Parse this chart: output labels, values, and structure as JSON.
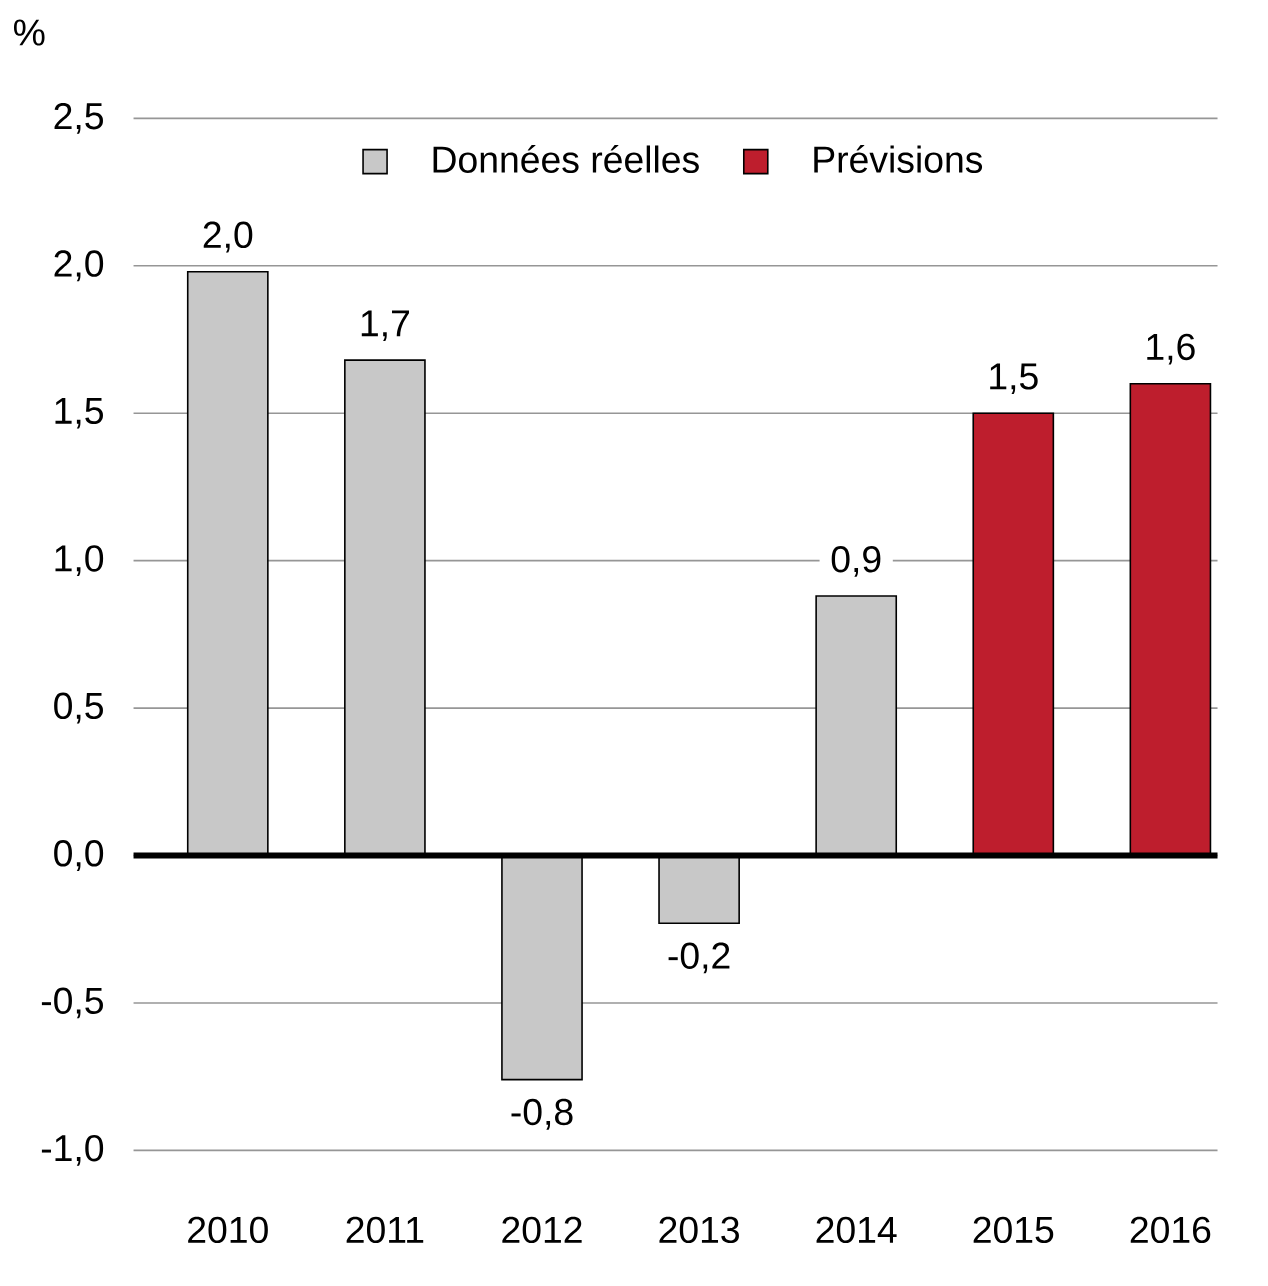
{
  "chart_data": {
    "type": "bar",
    "ylabel": "%",
    "categories": [
      "2010",
      "2011",
      "2012",
      "2013",
      "2014",
      "2015",
      "2016"
    ],
    "series": [
      {
        "name": "Données réelles",
        "color": "#c8c8c8",
        "values": [
          1.98,
          1.68,
          -0.76,
          -0.23,
          0.88,
          null,
          null
        ],
        "value_labels": [
          "2,0",
          "1,7",
          "-0,8",
          "-0,2",
          "0,9",
          null,
          null
        ]
      },
      {
        "name": "Prévisions",
        "color": "#be1e2d",
        "values": [
          null,
          null,
          null,
          null,
          null,
          1.5,
          1.6
        ],
        "value_labels": [
          null,
          null,
          null,
          null,
          null,
          "1,5",
          "1,6"
        ]
      }
    ],
    "ylim": [
      -1.0,
      2.5
    ],
    "yticks": [
      {
        "value": -1.0,
        "label": "-1,0"
      },
      {
        "value": -0.5,
        "label": "-0,5"
      },
      {
        "value": 0.0,
        "label": "0,0"
      },
      {
        "value": 0.5,
        "label": "0,5"
      },
      {
        "value": 1.0,
        "label": "1,0"
      },
      {
        "value": 1.5,
        "label": "1,5"
      },
      {
        "value": 2.0,
        "label": "2,0"
      },
      {
        "value": 2.5,
        "label": "2,5"
      }
    ],
    "ref_lines": [
      {
        "axis": "y",
        "value": 0,
        "color": "#000000"
      }
    ],
    "grid": "y",
    "legend": "top"
  }
}
